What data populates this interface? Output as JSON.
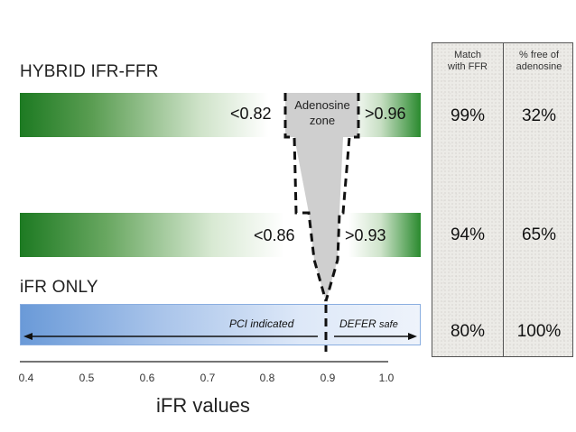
{
  "sections": {
    "hybrid_label": "HYBRID IFR-FFR",
    "ifr_only_label": "iFR ONLY"
  },
  "hybrid_bar": {
    "low_threshold": "<0.82",
    "high_threshold": ">0.96",
    "zone_line1": "Adenosine",
    "zone_line2": "zone"
  },
  "second_bar": {
    "low_threshold": "<0.86",
    "high_threshold": ">0.93"
  },
  "ifr_bar": {
    "pci_label": "PCI indicated",
    "defer_label_bold": "DEFER",
    "defer_label_rest": "safe"
  },
  "axis": {
    "ticks": [
      "0.4",
      "0.5",
      "0.6",
      "0.7",
      "0.8",
      "0.9",
      "1.0"
    ],
    "title": "iFR values"
  },
  "table": {
    "col1_head_line1": "Match",
    "col1_head_line2": "with FFR",
    "col2_head_line1": "% free of",
    "col2_head_line2": "adenosine",
    "rows": [
      {
        "match": "99%",
        "free": "32%"
      },
      {
        "match": "94%",
        "free": "65%"
      },
      {
        "match": "80%",
        "free": "100%"
      }
    ]
  },
  "colors": {
    "green_dark": "#1d7a22",
    "blue_light": "#a9c4ea",
    "zone_gray": "#cfcfcf"
  }
}
